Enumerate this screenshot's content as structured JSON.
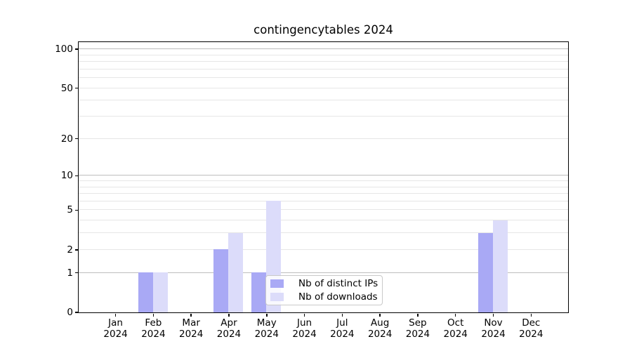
{
  "chart_data": {
    "type": "bar",
    "title": "contingencytables 2024",
    "x_categories": [
      {
        "month": "Jan",
        "year": "2024"
      },
      {
        "month": "Feb",
        "year": "2024"
      },
      {
        "month": "Mar",
        "year": "2024"
      },
      {
        "month": "Apr",
        "year": "2024"
      },
      {
        "month": "May",
        "year": "2024"
      },
      {
        "month": "Jun",
        "year": "2024"
      },
      {
        "month": "Jul",
        "year": "2024"
      },
      {
        "month": "Aug",
        "year": "2024"
      },
      {
        "month": "Sep",
        "year": "2024"
      },
      {
        "month": "Oct",
        "year": "2024"
      },
      {
        "month": "Nov",
        "year": "2024"
      },
      {
        "month": "Dec",
        "year": "2024"
      }
    ],
    "series": [
      {
        "name": "Nb of distinct IPs",
        "color": "#a9a9f5",
        "values": [
          0,
          1,
          0,
          2,
          1,
          0,
          0,
          0,
          0,
          0,
          3,
          0
        ]
      },
      {
        "name": "Nb of downloads",
        "color": "#dcdcfa",
        "values": [
          0,
          1,
          0,
          3,
          6,
          0,
          0,
          0,
          0,
          0,
          4,
          0
        ]
      }
    ],
    "y_axis": {
      "scale": "log10(1+y)",
      "tick_values": [
        0,
        1,
        2,
        5,
        10,
        20,
        50,
        100
      ],
      "major_grid_values": [
        1,
        10,
        100
      ],
      "minor_grid_values": [
        2,
        3,
        4,
        5,
        6,
        7,
        8,
        9,
        20,
        30,
        40,
        50,
        60,
        70,
        80,
        90
      ],
      "ylim": [
        0,
        112
      ]
    },
    "legend": {
      "location": "lower-center"
    },
    "colors": {
      "major_grid": "#bdbdbd",
      "minor_grid": "#e6e6e6",
      "axis": "#000000",
      "background": "#ffffff"
    }
  }
}
